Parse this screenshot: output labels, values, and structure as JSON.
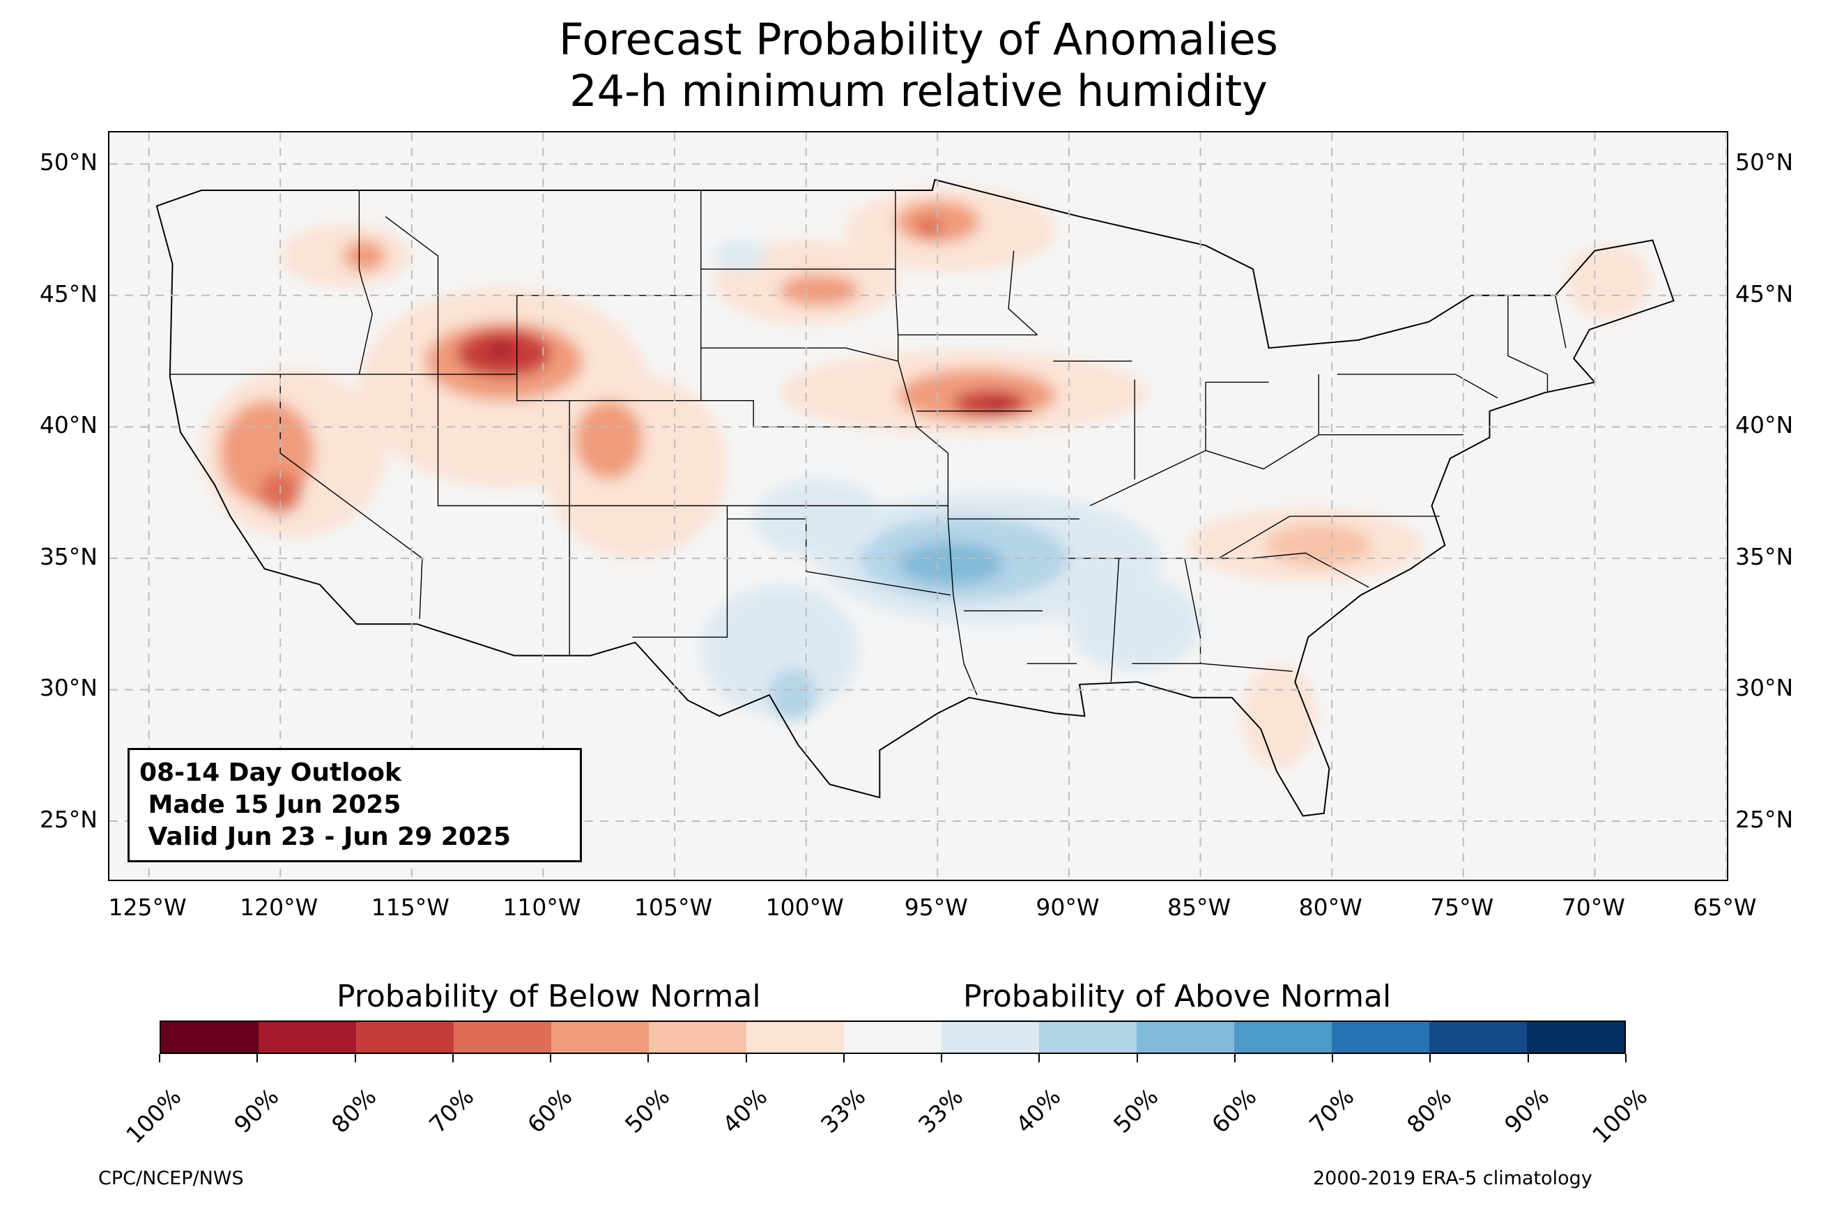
{
  "title_line1": "Forecast Probability of Anomalies",
  "title_line2": "24-h minimum relative humidity",
  "outlook": {
    "line1": "08-14 Day Outlook",
    "line2": " Made 15 Jun 2025",
    "line3": " Valid Jun 23 - Jun 29 2025"
  },
  "map": {
    "lon_range": [
      -126.5,
      -65.0
    ],
    "lat_range": [
      22.8,
      51.2
    ],
    "lon_ticks": [
      -125,
      -120,
      -115,
      -110,
      -105,
      -100,
      -95,
      -90,
      -85,
      -80,
      -75,
      -70,
      -65
    ],
    "lon_labels": [
      "125°W",
      "120°W",
      "115°W",
      "110°W",
      "105°W",
      "100°W",
      "95°W",
      "90°W",
      "85°W",
      "80°W",
      "75°W",
      "70°W",
      "65°W"
    ],
    "lat_ticks": [
      50,
      45,
      40,
      35,
      30,
      25
    ],
    "lat_labels": [
      "50°N",
      "45°N",
      "40°N",
      "35°N",
      "30°N",
      "25°N"
    ],
    "gridlines": true,
    "background_color": "#f5f5f5",
    "anomaly_regions": [
      {
        "category": "below",
        "level": 1,
        "lon": -119.5,
        "lat": 39.0,
        "rlon": 3.5,
        "rlat": 3.2
      },
      {
        "category": "below",
        "level": 3,
        "lon": -120.5,
        "lat": 39.0,
        "rlon": 1.8,
        "rlat": 2.0
      },
      {
        "category": "below",
        "level": 4,
        "lon": -120.0,
        "lat": 37.5,
        "rlon": 0.8,
        "rlat": 0.8
      },
      {
        "category": "below",
        "level": 1,
        "lon": -117.5,
        "lat": 46.5,
        "rlon": 2.5,
        "rlat": 1.2
      },
      {
        "category": "below",
        "level": 3,
        "lon": -116.8,
        "lat": 46.5,
        "rlon": 0.8,
        "rlat": 0.6
      },
      {
        "category": "below",
        "level": 1,
        "lon": -111.5,
        "lat": 41.5,
        "rlon": 5.5,
        "rlat": 3.8
      },
      {
        "category": "below",
        "level": 3,
        "lon": -111.5,
        "lat": 42.5,
        "rlon": 3.0,
        "rlat": 1.5
      },
      {
        "category": "below",
        "level": 5,
        "lon": -111.5,
        "lat": 42.8,
        "rlon": 1.8,
        "rlat": 0.9
      },
      {
        "category": "below",
        "level": 6,
        "lon": -111.6,
        "lat": 42.9,
        "rlon": 0.5,
        "rlat": 0.3
      },
      {
        "category": "below",
        "level": 1,
        "lon": -106.5,
        "lat": 38.5,
        "rlon": 3.5,
        "rlat": 3.5
      },
      {
        "category": "below",
        "level": 3,
        "lon": -107.5,
        "lat": 39.5,
        "rlon": 1.3,
        "rlat": 1.5
      },
      {
        "category": "below",
        "level": 1,
        "lon": -94.5,
        "lat": 47.5,
        "rlon": 4.0,
        "rlat": 1.6
      },
      {
        "category": "below",
        "level": 3,
        "lon": -95.0,
        "lat": 47.8,
        "rlon": 1.6,
        "rlat": 0.8
      },
      {
        "category": "below",
        "level": 4,
        "lon": -95.3,
        "lat": 47.6,
        "rlon": 0.5,
        "rlat": 0.4
      },
      {
        "category": "below",
        "level": 1,
        "lon": -100.0,
        "lat": 45.5,
        "rlon": 3.5,
        "rlat": 1.6
      },
      {
        "category": "below",
        "level": 3,
        "lon": -99.5,
        "lat": 45.2,
        "rlon": 1.5,
        "rlat": 0.6
      },
      {
        "category": "below",
        "level": 1,
        "lon": -94.0,
        "lat": 41.3,
        "rlon": 7.0,
        "rlat": 1.6
      },
      {
        "category": "below",
        "level": 3,
        "lon": -93.5,
        "lat": 41.2,
        "rlon": 3.0,
        "rlat": 1.0
      },
      {
        "category": "below",
        "level": 5,
        "lon": -93.0,
        "lat": 40.9,
        "rlon": 1.4,
        "rlat": 0.5
      },
      {
        "category": "below",
        "level": 6,
        "lon": -92.7,
        "lat": 40.8,
        "rlon": 0.4,
        "rlat": 0.2
      },
      {
        "category": "below",
        "level": 1,
        "lon": -81.0,
        "lat": 35.5,
        "rlon": 4.5,
        "rlat": 1.4
      },
      {
        "category": "below",
        "level": 2,
        "lon": -80.5,
        "lat": 35.5,
        "rlon": 2.0,
        "rlat": 0.8
      },
      {
        "category": "below",
        "level": 1,
        "lon": -82.0,
        "lat": 29.0,
        "rlon": 1.4,
        "rlat": 2.0
      },
      {
        "category": "below",
        "level": 1,
        "lon": -69.5,
        "lat": 45.5,
        "rlon": 1.6,
        "rlat": 1.4
      },
      {
        "category": "above",
        "level": 1,
        "lon": -93.0,
        "lat": 35.0,
        "rlon": 6.5,
        "rlat": 2.5
      },
      {
        "category": "above",
        "level": 2,
        "lon": -94.0,
        "lat": 35.0,
        "rlon": 4.0,
        "rlat": 1.6
      },
      {
        "category": "above",
        "level": 3,
        "lon": -94.5,
        "lat": 34.8,
        "rlon": 2.0,
        "rlat": 0.8
      },
      {
        "category": "above",
        "level": 1,
        "lon": -101.0,
        "lat": 31.5,
        "rlon": 3.0,
        "rlat": 2.5
      },
      {
        "category": "above",
        "level": 2,
        "lon": -100.5,
        "lat": 29.8,
        "rlon": 0.9,
        "rlat": 1.0
      },
      {
        "category": "above",
        "level": 1,
        "lon": -99.5,
        "lat": 36.5,
        "rlon": 2.5,
        "rlat": 1.5
      },
      {
        "category": "above",
        "level": 1,
        "lon": -87.5,
        "lat": 32.5,
        "rlon": 2.5,
        "rlat": 1.8
      },
      {
        "category": "above",
        "level": 1,
        "lon": -102.5,
        "lat": 46.5,
        "rlon": 1.0,
        "rlat": 0.6
      }
    ]
  },
  "colorbar": {
    "below_label": "Probability of Below Normal",
    "above_label": "Probability of Above Normal",
    "colors": [
      "#67001f",
      "#a51a2b",
      "#c63c3a",
      "#df6d56",
      "#f09c7b",
      "#f7c3a8",
      "#fbe3d5",
      "#f5f5f5",
      "#dde9f2",
      "#b4d4e7",
      "#82bad9",
      "#4d99c8",
      "#2873b3",
      "#144a8a",
      "#053061"
    ],
    "tick_labels": [
      "100%",
      "90%",
      "80%",
      "70%",
      "60%",
      "50%",
      "40%",
      "33%",
      "33%",
      "40%",
      "50%",
      "60%",
      "70%",
      "80%",
      "90%",
      "100%"
    ]
  },
  "footer": {
    "left": "CPC/NCEP/NWS",
    "right": "2000-2019 ERA-5 climatology"
  }
}
